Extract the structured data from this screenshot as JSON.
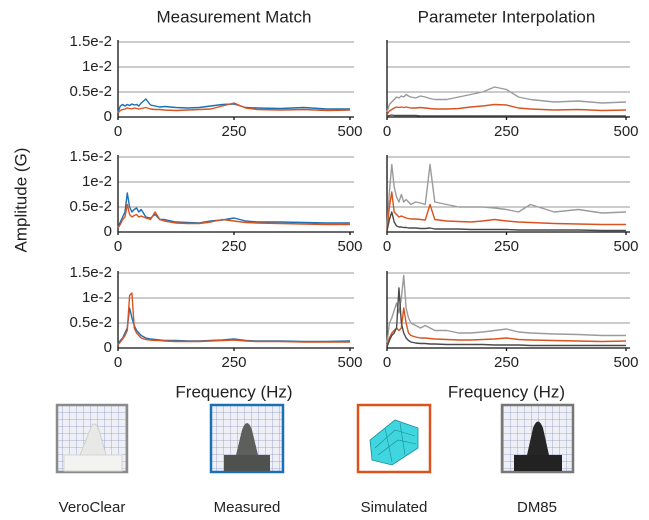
{
  "chart_data": [
    {
      "type": "line",
      "title": "Measurement Match",
      "x": [
        0,
        5,
        10,
        15,
        20,
        25,
        30,
        35,
        40,
        45,
        50,
        60,
        70,
        80,
        90,
        100,
        125,
        150,
        175,
        200,
        225,
        250,
        275,
        300,
        350,
        400,
        450,
        500
      ],
      "series": [
        {
          "color": "#1a6fb5",
          "values": [
            0.001,
            0.0022,
            0.0025,
            0.0022,
            0.0025,
            0.0023,
            0.0026,
            0.0024,
            0.0025,
            0.0022,
            0.0028,
            0.0036,
            0.0024,
            0.0022,
            0.002,
            0.0021,
            0.0019,
            0.0018,
            0.0019,
            0.0022,
            0.0025,
            0.0026,
            0.0019,
            0.0018,
            0.0017,
            0.0019,
            0.0016,
            0.0016
          ]
        },
        {
          "color": "#d9531e",
          "values": [
            0.0008,
            0.0013,
            0.0015,
            0.0016,
            0.0018,
            0.0017,
            0.0016,
            0.0018,
            0.0017,
            0.0016,
            0.0017,
            0.0019,
            0.0016,
            0.0015,
            0.0015,
            0.0014,
            0.0013,
            0.0014,
            0.0015,
            0.0016,
            0.0022,
            0.0028,
            0.0018,
            0.0015,
            0.0014,
            0.0015,
            0.0013,
            0.0014
          ]
        }
      ],
      "xlim": [
        0,
        500
      ],
      "xticks": [
        0,
        250,
        500
      ],
      "ylim": [
        0,
        0.015
      ],
      "yticks": [
        0,
        {
          "value": 0.005,
          "label": "0.5e-2"
        },
        {
          "value": 0.01,
          "label": "1e-2"
        },
        {
          "value": 0.015,
          "label": "1.5e-2"
        }
      ],
      "ytick_labels": true
    },
    {
      "type": "line",
      "title": "Parameter Interpolation",
      "x": [
        0,
        5,
        10,
        15,
        20,
        25,
        30,
        35,
        40,
        45,
        50,
        60,
        70,
        80,
        90,
        100,
        125,
        150,
        175,
        200,
        225,
        250,
        275,
        300,
        350,
        400,
        450,
        500
      ],
      "series": [
        {
          "color": "#9b9b9b",
          "values": [
            0.001,
            0.0025,
            0.003,
            0.0035,
            0.004,
            0.0038,
            0.0042,
            0.004,
            0.0045,
            0.0042,
            0.004,
            0.0038,
            0.0042,
            0.004,
            0.0037,
            0.0035,
            0.0035,
            0.004,
            0.0045,
            0.005,
            0.006,
            0.0055,
            0.004,
            0.0035,
            0.003,
            0.0032,
            0.0028,
            0.003
          ]
        },
        {
          "color": "#d9531e",
          "values": [
            0.0005,
            0.0012,
            0.0015,
            0.0018,
            0.002,
            0.0019,
            0.002,
            0.0019,
            0.002,
            0.0019,
            0.0018,
            0.0018,
            0.0019,
            0.0018,
            0.0017,
            0.0016,
            0.0016,
            0.0017,
            0.002,
            0.0022,
            0.0025,
            0.0024,
            0.0018,
            0.0016,
            0.0014,
            0.0015,
            0.0013,
            0.0014
          ]
        },
        {
          "color": "#4a4a4a",
          "values": [
            0.0001,
            0.0003,
            0.0004,
            0.0003,
            0.0003,
            0.0003,
            0.0003,
            0.0003,
            0.0003,
            0.0003,
            0.0003,
            0.0003,
            0.0002,
            0.0002,
            0.0002,
            0.0002,
            0.0002,
            0.0002,
            0.0002,
            0.0002,
            0.0002,
            0.0002,
            0.0002,
            0.0002,
            0.0002,
            0.0002,
            0.0002,
            0.0002
          ]
        }
      ],
      "xlim": [
        0,
        500
      ],
      "xticks": [
        0,
        250,
        500
      ],
      "ylim": [
        0,
        0.015
      ],
      "yticks": [
        0,
        0.005,
        0.01,
        0.015
      ],
      "ytick_labels": false
    },
    {
      "type": "line",
      "y_label": "Amplitude (G)",
      "x": [
        0,
        5,
        10,
        15,
        20,
        25,
        30,
        35,
        40,
        45,
        50,
        60,
        70,
        80,
        90,
        100,
        125,
        150,
        175,
        200,
        225,
        250,
        275,
        300,
        350,
        400,
        450,
        500
      ],
      "series": [
        {
          "color": "#1a6fb5",
          "values": [
            0.001,
            0.002,
            0.003,
            0.004,
            0.0078,
            0.005,
            0.004,
            0.0045,
            0.0048,
            0.004,
            0.0045,
            0.003,
            0.0028,
            0.0035,
            0.0025,
            0.0025,
            0.002,
            0.0019,
            0.0018,
            0.0022,
            0.0024,
            0.0028,
            0.0022,
            0.002,
            0.002,
            0.0019,
            0.0018,
            0.0018
          ]
        },
        {
          "color": "#d9531e",
          "values": [
            0.0008,
            0.0015,
            0.0025,
            0.003,
            0.0055,
            0.0035,
            0.003,
            0.0033,
            0.0035,
            0.003,
            0.0032,
            0.0028,
            0.0025,
            0.004,
            0.0025,
            0.0022,
            0.0018,
            0.0017,
            0.0017,
            0.002,
            0.0025,
            0.0022,
            0.0019,
            0.0018,
            0.0017,
            0.0016,
            0.0015,
            0.0015
          ]
        }
      ],
      "xlim": [
        0,
        500
      ],
      "xticks": [
        0,
        250,
        500
      ],
      "ylim": [
        0,
        0.015
      ],
      "yticks": [
        0,
        {
          "value": 0.005,
          "label": "0.5e-2"
        },
        {
          "value": 0.01,
          "label": "1e-2"
        },
        {
          "value": 0.015,
          "label": "1.5e-2"
        }
      ],
      "ytick_labels": true
    },
    {
      "type": "line",
      "x": [
        0,
        5,
        10,
        15,
        20,
        25,
        30,
        35,
        40,
        45,
        50,
        60,
        70,
        80,
        90,
        100,
        125,
        150,
        175,
        200,
        225,
        250,
        275,
        300,
        350,
        400,
        450,
        500
      ],
      "series": [
        {
          "color": "#9b9b9b",
          "values": [
            0.001,
            0.008,
            0.0135,
            0.009,
            0.007,
            0.006,
            0.0075,
            0.006,
            0.0065,
            0.006,
            0.0055,
            0.006,
            0.0058,
            0.0055,
            0.0135,
            0.006,
            0.0055,
            0.005,
            0.005,
            0.005,
            0.0048,
            0.0045,
            0.004,
            0.0055,
            0.004,
            0.0045,
            0.0038,
            0.004
          ]
        },
        {
          "color": "#d9531e",
          "values": [
            0.0005,
            0.005,
            0.008,
            0.004,
            0.0035,
            0.003,
            0.0032,
            0.003,
            0.0028,
            0.0027,
            0.0026,
            0.0026,
            0.0025,
            0.0024,
            0.0055,
            0.0025,
            0.0022,
            0.0021,
            0.002,
            0.0022,
            0.0025,
            0.0022,
            0.002,
            0.0019,
            0.0017,
            0.0016,
            0.0015,
            0.0015
          ]
        },
        {
          "color": "#4a4a4a",
          "values": [
            0.0002,
            0.0025,
            0.004,
            0.002,
            0.0012,
            0.001,
            0.001,
            0.0009,
            0.0009,
            0.0008,
            0.0008,
            0.0008,
            0.0007,
            0.0007,
            0.0008,
            0.0006,
            0.0006,
            0.0006,
            0.0005,
            0.0005,
            0.0005,
            0.0005,
            0.0004,
            0.0004,
            0.0004,
            0.0004,
            0.0003,
            0.0003
          ]
        }
      ],
      "xlim": [
        0,
        500
      ],
      "xticks": [
        0,
        250,
        500
      ],
      "ylim": [
        0,
        0.015
      ],
      "yticks": [
        0,
        0.005,
        0.01,
        0.015
      ],
      "ytick_labels": false
    },
    {
      "type": "line",
      "x_label": "Frequency (Hz)",
      "x": [
        0,
        5,
        10,
        15,
        20,
        25,
        30,
        35,
        40,
        45,
        50,
        60,
        70,
        80,
        90,
        100,
        125,
        150,
        175,
        200,
        225,
        250,
        275,
        300,
        350,
        400,
        450,
        500
      ],
      "series": [
        {
          "color": "#1a6fb5",
          "values": [
            0.0008,
            0.0015,
            0.002,
            0.003,
            0.004,
            0.008,
            0.006,
            0.0045,
            0.0035,
            0.003,
            0.0025,
            0.002,
            0.0018,
            0.0017,
            0.0016,
            0.0015,
            0.0015,
            0.0014,
            0.0014,
            0.0015,
            0.0016,
            0.0018,
            0.0015,
            0.0014,
            0.0014,
            0.0013,
            0.0013,
            0.0014
          ]
        },
        {
          "color": "#d9531e",
          "values": [
            0.0006,
            0.0012,
            0.0018,
            0.0025,
            0.0035,
            0.0105,
            0.011,
            0.004,
            0.003,
            0.0025,
            0.002,
            0.0017,
            0.0016,
            0.0015,
            0.0015,
            0.0014,
            0.0013,
            0.0013,
            0.0013,
            0.0014,
            0.0015,
            0.0016,
            0.0014,
            0.0013,
            0.0013,
            0.0012,
            0.0012,
            0.0012
          ]
        }
      ],
      "xlim": [
        0,
        500
      ],
      "xticks": [
        0,
        250,
        500
      ],
      "ylim": [
        0,
        0.015
      ],
      "yticks": [
        0,
        {
          "value": 0.005,
          "label": "0.5e-2"
        },
        {
          "value": 0.01,
          "label": "1e-2"
        },
        {
          "value": 0.015,
          "label": "1.5e-2"
        }
      ],
      "ytick_labels": true
    },
    {
      "type": "line",
      "x_label": "Frequency (Hz)",
      "x": [
        0,
        5,
        10,
        15,
        20,
        25,
        30,
        35,
        40,
        45,
        50,
        60,
        70,
        80,
        90,
        100,
        125,
        150,
        175,
        200,
        225,
        250,
        275,
        300,
        350,
        400,
        450,
        500
      ],
      "series": [
        {
          "color": "#9b9b9b",
          "values": [
            0.001,
            0.005,
            0.006,
            0.0075,
            0.009,
            0.007,
            0.01,
            0.0145,
            0.008,
            0.006,
            0.005,
            0.0045,
            0.004,
            0.0045,
            0.004,
            0.0035,
            0.0035,
            0.003,
            0.003,
            0.0032,
            0.0035,
            0.0038,
            0.0032,
            0.003,
            0.0028,
            0.0027,
            0.0025,
            0.0025
          ]
        },
        {
          "color": "#d9531e",
          "values": [
            0.0005,
            0.002,
            0.003,
            0.0035,
            0.004,
            0.0035,
            0.004,
            0.008,
            0.005,
            0.003,
            0.0025,
            0.0022,
            0.002,
            0.002,
            0.0019,
            0.0018,
            0.0017,
            0.0016,
            0.0016,
            0.0017,
            0.0018,
            0.002,
            0.0017,
            0.0016,
            0.0015,
            0.0014,
            0.0013,
            0.0014
          ]
        },
        {
          "color": "#4a4a4a",
          "values": [
            0.0002,
            0.0015,
            0.0025,
            0.003,
            0.004,
            0.012,
            0.005,
            0.003,
            0.002,
            0.0015,
            0.0012,
            0.001,
            0.0009,
            0.0009,
            0.0008,
            0.0008,
            0.0007,
            0.0007,
            0.0007,
            0.0007,
            0.0006,
            0.0006,
            0.0006,
            0.0005,
            0.0005,
            0.0005,
            0.0005,
            0.0005
          ]
        }
      ],
      "xlim": [
        0,
        500
      ],
      "xticks": [
        0,
        250,
        500
      ],
      "ylim": [
        0,
        0.015
      ],
      "yticks": [
        0,
        0.005,
        0.01,
        0.015
      ],
      "ytick_labels": false
    }
  ],
  "samples": [
    {
      "label": "VeroClear"
    },
    {
      "label": "Measured"
    },
    {
      "label": "Simulated"
    },
    {
      "label": "DM85"
    }
  ]
}
